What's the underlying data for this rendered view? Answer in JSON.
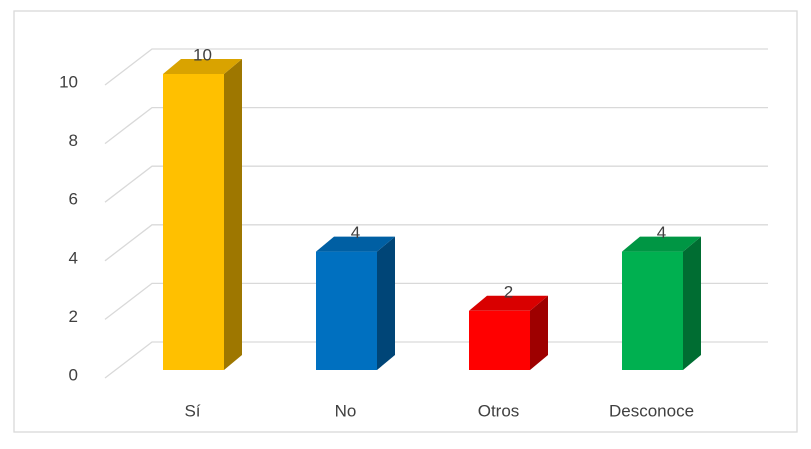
{
  "chart_data": {
    "type": "bar3d",
    "categories": [
      "Sí",
      "No",
      "Otros",
      "Desconoce"
    ],
    "values": [
      10,
      4,
      2,
      4
    ],
    "colors": [
      "#ffc000",
      "#0070c0",
      "#ff0000",
      "#00b050"
    ],
    "ylim": [
      0,
      10
    ],
    "yticks": [
      0,
      2,
      4,
      6,
      8,
      10
    ],
    "grid": true
  }
}
